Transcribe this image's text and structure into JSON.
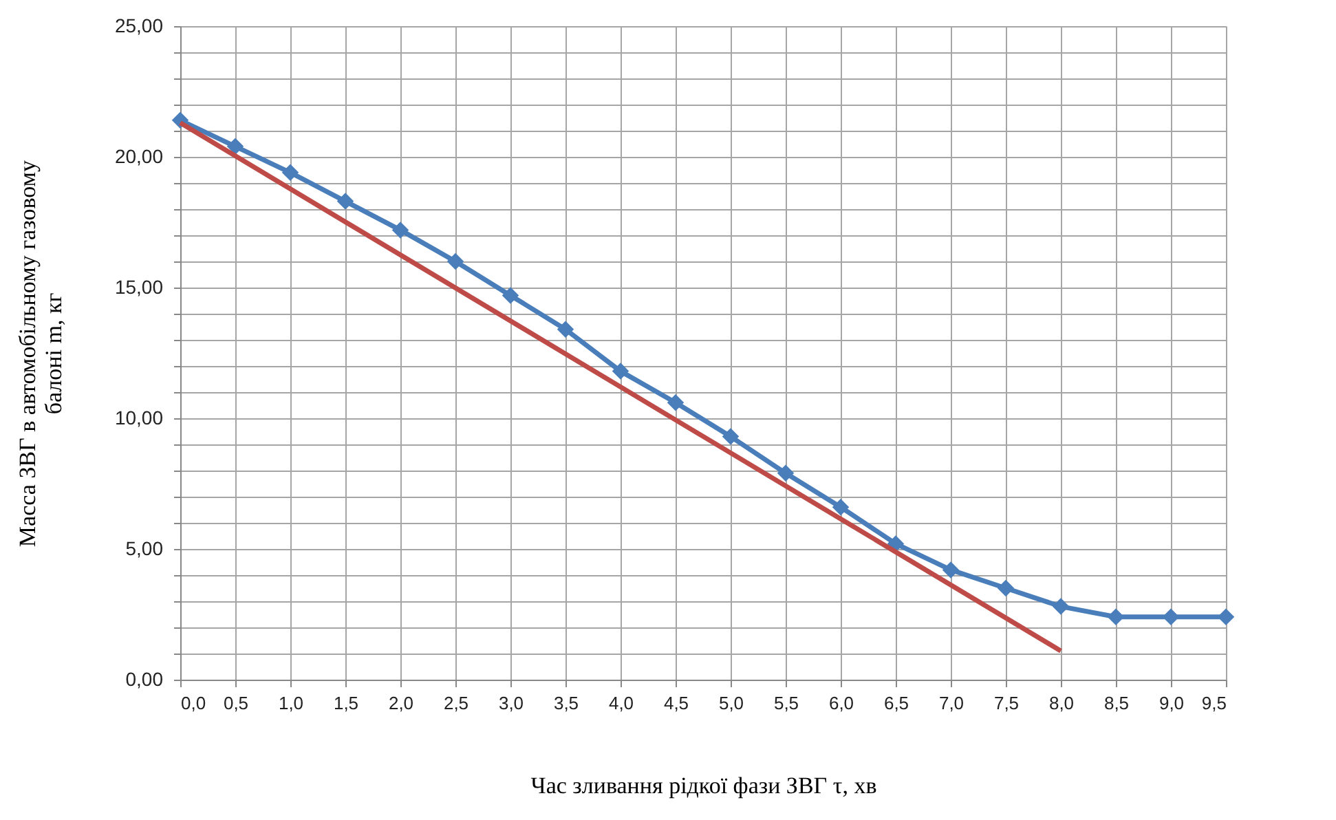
{
  "chart_data": {
    "type": "line",
    "xlabel": "Час зливання рідкої фази ЗВГ τ, хв",
    "ylabel": "Масса ЗВГ в автомобільному газовому\nбалоні m, кг",
    "xlim": [
      0,
      9.5
    ],
    "xticks": [
      {
        "value": 0,
        "label": "0,0"
      },
      {
        "value": 0.5,
        "label": "0,5"
      },
      {
        "value": 1,
        "label": "1,0"
      },
      {
        "value": 1.5,
        "label": "1,5"
      },
      {
        "value": 2,
        "label": "2,0"
      },
      {
        "value": 2.5,
        "label": "2,5"
      },
      {
        "value": 3,
        "label": "3,0"
      },
      {
        "value": 3.5,
        "label": "3,5"
      },
      {
        "value": 4,
        "label": "4,0"
      },
      {
        "value": 4.5,
        "label": "4,5"
      },
      {
        "value": 5,
        "label": "5,0"
      },
      {
        "value": 5.5,
        "label": "5,5"
      },
      {
        "value": 6,
        "label": "6,0"
      },
      {
        "value": 6.5,
        "label": "6,5"
      },
      {
        "value": 7,
        "label": "7,0"
      },
      {
        "value": 7.5,
        "label": "7,5"
      },
      {
        "value": 8,
        "label": "8,0"
      },
      {
        "value": 8.5,
        "label": "8,5"
      },
      {
        "value": 9,
        "label": "9,0"
      },
      {
        "value": 9.5,
        "label": "9,5"
      }
    ],
    "ylim": [
      0,
      25
    ],
    "yticks": [
      {
        "value": 0,
        "label": "0,00"
      },
      {
        "value": 1,
        "label": null
      },
      {
        "value": 2,
        "label": null
      },
      {
        "value": 3,
        "label": null
      },
      {
        "value": 4,
        "label": null
      },
      {
        "value": 5,
        "label": "5,00"
      },
      {
        "value": 6,
        "label": null
      },
      {
        "value": 7,
        "label": null
      },
      {
        "value": 8,
        "label": null
      },
      {
        "value": 9,
        "label": null
      },
      {
        "value": 10,
        "label": "10,00"
      },
      {
        "value": 11,
        "label": null
      },
      {
        "value": 12,
        "label": null
      },
      {
        "value": 13,
        "label": null
      },
      {
        "value": 14,
        "label": null
      },
      {
        "value": 15,
        "label": "15,00"
      },
      {
        "value": 16,
        "label": null
      },
      {
        "value": 17,
        "label": null
      },
      {
        "value": 18,
        "label": null
      },
      {
        "value": 19,
        "label": null
      },
      {
        "value": 20,
        "label": "20,00"
      },
      {
        "value": 21,
        "label": null
      },
      {
        "value": 22,
        "label": null
      },
      {
        "value": 23,
        "label": null
      },
      {
        "value": 24,
        "label": null
      },
      {
        "value": 25,
        "label": "25,00"
      }
    ],
    "grid": true,
    "line_style": "solid",
    "series": [
      {
        "color": "#4a7ebb",
        "marker": "diamond",
        "x": [
          0,
          0.5,
          1,
          1.5,
          2,
          2.5,
          3,
          3.5,
          4,
          4.5,
          5,
          5.5,
          6,
          6.5,
          7,
          7.5,
          8,
          8.5,
          9,
          9.5
        ],
        "values": [
          21.4,
          20.4,
          19.4,
          18.3,
          17.2,
          16.0,
          14.7,
          13.4,
          11.8,
          10.6,
          9.3,
          7.9,
          6.6,
          5.2,
          4.2,
          3.5,
          2.8,
          2.4,
          2.4,
          2.4
        ]
      },
      {
        "color": "#be4b48",
        "marker": "none",
        "x": [
          0,
          8
        ],
        "values": [
          21.3,
          1.1
        ]
      }
    ]
  }
}
